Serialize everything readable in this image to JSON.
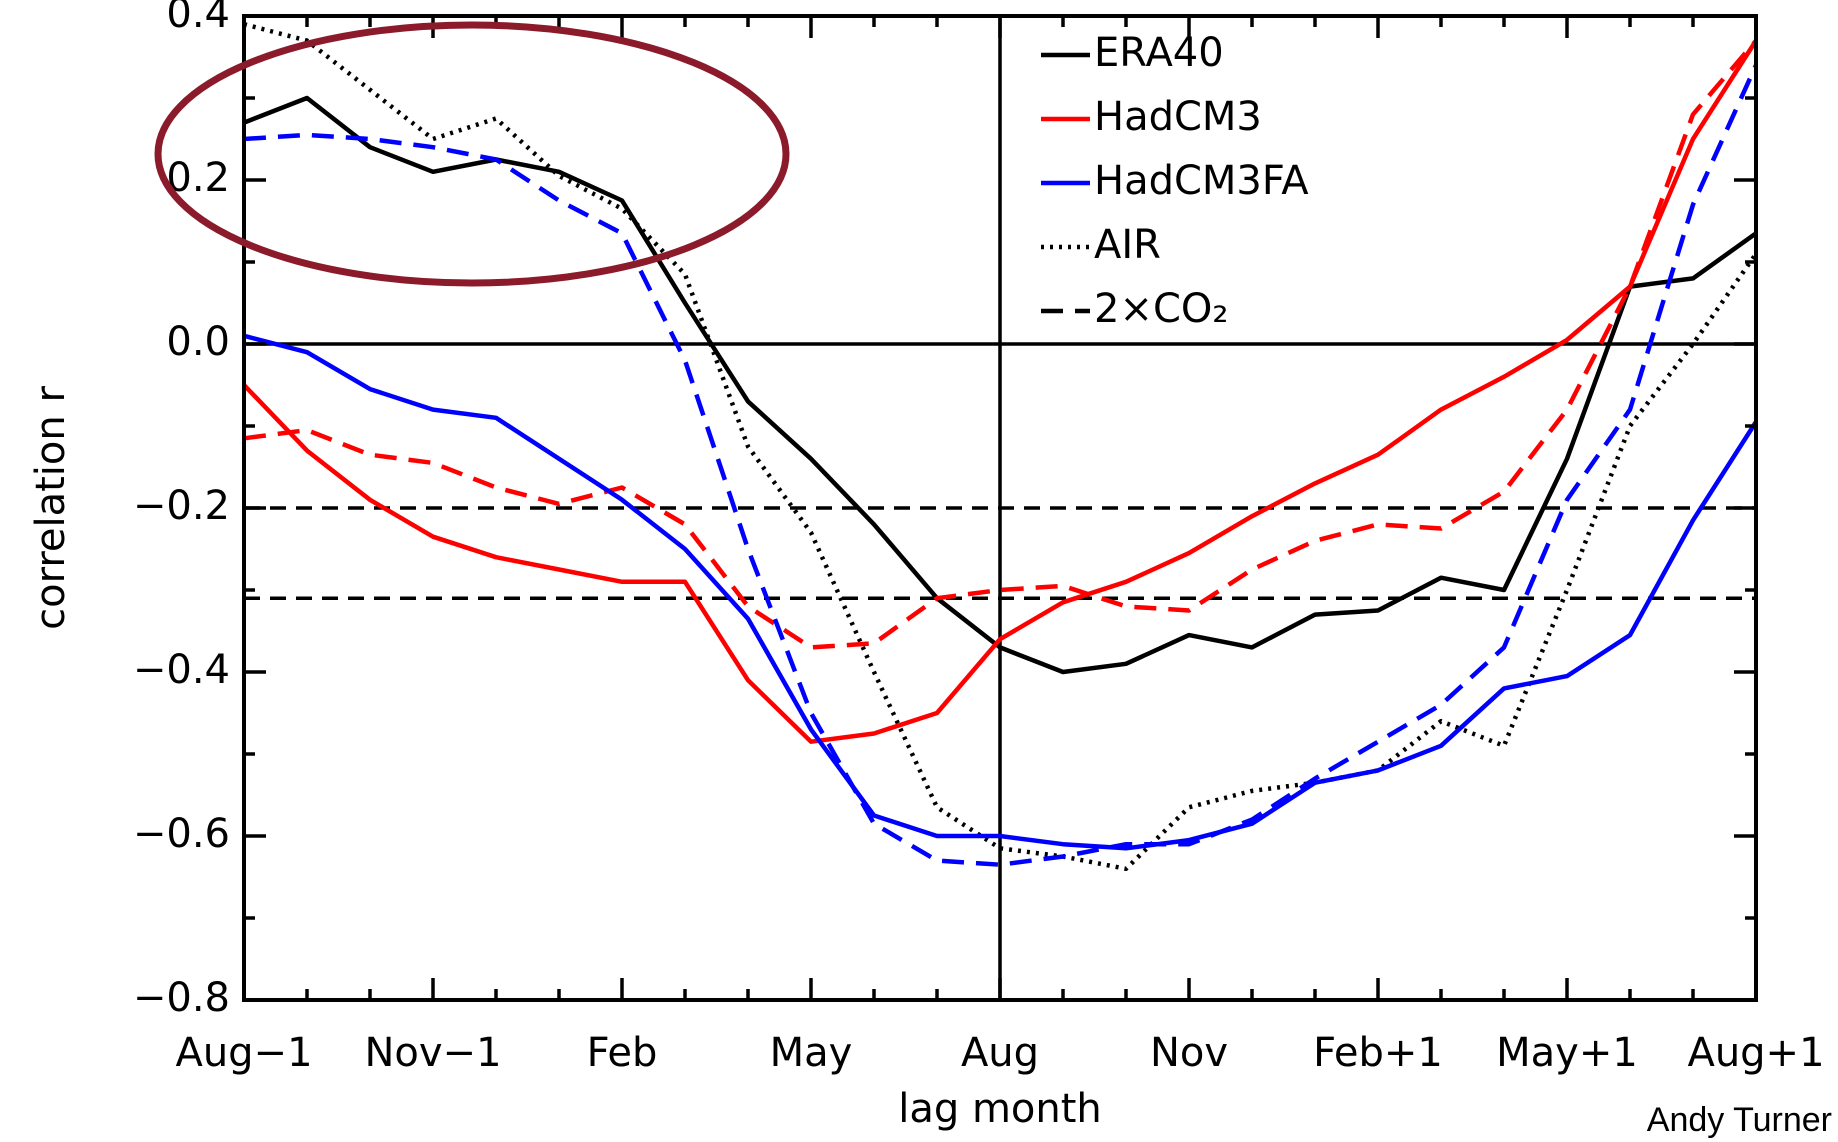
{
  "chart_data": {
    "type": "line",
    "x_label": "lag month",
    "y_label": "correlation r",
    "credit": "Andy Turner",
    "x": [
      0,
      1,
      2,
      3,
      4,
      5,
      6,
      7,
      8,
      9,
      10,
      11,
      12,
      13,
      14,
      15,
      16,
      17,
      18,
      19,
      20,
      21,
      22,
      23,
      24
    ],
    "xlim": [
      0,
      24
    ],
    "xticks": [
      {
        "value": 0,
        "label": "Aug−1"
      },
      {
        "value": 3,
        "label": "Nov−1"
      },
      {
        "value": 6,
        "label": "Feb"
      },
      {
        "value": 9,
        "label": "May"
      },
      {
        "value": 12,
        "label": "Aug"
      },
      {
        "value": 15,
        "label": "Nov"
      },
      {
        "value": 18,
        "label": "Feb+1"
      },
      {
        "value": 21,
        "label": "May+1"
      },
      {
        "value": 24,
        "label": "Aug+1"
      }
    ],
    "xminorticks": [
      1,
      2,
      4,
      5,
      7,
      8,
      10,
      11,
      13,
      14,
      16,
      17,
      19,
      20,
      22,
      23
    ],
    "ylim": [
      -0.8,
      0.4
    ],
    "yticks": [
      {
        "value": -0.8,
        "label": "−0.8"
      },
      {
        "value": -0.6,
        "label": "−0.6"
      },
      {
        "value": -0.4,
        "label": "−0.4"
      },
      {
        "value": -0.2,
        "label": "−0.2"
      },
      {
        "value": 0,
        "label": "0.0"
      },
      0.2,
      0.4
    ],
    "yminorticks": [
      -0.7,
      -0.5,
      -0.3,
      -0.1,
      0.1,
      0.3
    ],
    "reference_lines": {
      "y_solid": [
        0
      ],
      "x_solid": [
        12
      ],
      "y_dashed": [
        -0.2,
        -0.31
      ]
    },
    "legend": [
      {
        "label": "ERA40",
        "color": "#000000",
        "dash": "solid"
      },
      {
        "label": "HadCM3",
        "color": "#ff0000",
        "dash": "solid"
      },
      {
        "label": "HadCM3FA",
        "color": "#0000ff",
        "dash": "solid"
      },
      {
        "label": "AIR",
        "color": "#000000",
        "dash": "dotted"
      },
      {
        "label": "2×CO₂",
        "color": "#000000",
        "dash": "dashed"
      }
    ],
    "series": [
      {
        "color": "#000000",
        "dash": "solid",
        "values": [
          0.27,
          0.3,
          0.24,
          0.21,
          0.225,
          0.21,
          0.175,
          0.05,
          -0.07,
          -0.14,
          -0.22,
          -0.31,
          -0.37,
          -0.4,
          -0.39,
          -0.355,
          -0.37,
          -0.33,
          -0.325,
          -0.285,
          -0.3,
          -0.14,
          0.07,
          0.08,
          0.135
        ]
      },
      {
        "color": "#000000",
        "dash": "dotted",
        "values": [
          0.39,
          0.37,
          0.31,
          0.25,
          0.275,
          0.205,
          0.165,
          0.085,
          -0.125,
          -0.23,
          -0.4,
          -0.565,
          -0.615,
          -0.625,
          -0.64,
          -0.565,
          -0.545,
          -0.535,
          -0.52,
          -0.46,
          -0.49,
          -0.3,
          -0.1,
          0.0,
          0.11
        ]
      },
      {
        "color": "#ff0000",
        "dash": "solid",
        "values": [
          -0.05,
          -0.13,
          -0.19,
          -0.235,
          -0.26,
          -0.275,
          -0.29,
          -0.29,
          -0.41,
          -0.485,
          -0.475,
          -0.45,
          -0.36,
          -0.315,
          -0.29,
          -0.255,
          -0.21,
          -0.17,
          -0.135,
          -0.08,
          -0.04,
          0.005,
          0.07,
          0.25,
          0.37
        ]
      },
      {
        "color": "#ff0000",
        "dash": "dashed",
        "values": [
          -0.115,
          -0.105,
          -0.135,
          -0.145,
          -0.175,
          -0.195,
          -0.175,
          -0.22,
          -0.32,
          -0.37,
          -0.365,
          -0.31,
          -0.3,
          -0.295,
          -0.32,
          -0.325,
          -0.275,
          -0.24,
          -0.22,
          -0.225,
          -0.18,
          -0.08,
          0.07,
          0.28,
          0.37
        ]
      },
      {
        "color": "#0000ff",
        "dash": "solid",
        "values": [
          0.01,
          -0.01,
          -0.055,
          -0.08,
          -0.09,
          -0.14,
          -0.19,
          -0.25,
          -0.335,
          -0.47,
          -0.575,
          -0.6,
          -0.6,
          -0.61,
          -0.615,
          -0.605,
          -0.585,
          -0.535,
          -0.52,
          -0.49,
          -0.42,
          -0.405,
          -0.355,
          -0.215,
          -0.095
        ]
      },
      {
        "color": "#0000ff",
        "dash": "dashed",
        "values": [
          0.25,
          0.255,
          0.25,
          0.24,
          0.225,
          0.175,
          0.135,
          -0.02,
          -0.25,
          -0.45,
          -0.585,
          -0.63,
          -0.635,
          -0.625,
          -0.61,
          -0.61,
          -0.58,
          -0.53,
          -0.485,
          -0.44,
          -0.37,
          -0.19,
          -0.08,
          0.17,
          0.34
        ]
      }
    ]
  }
}
